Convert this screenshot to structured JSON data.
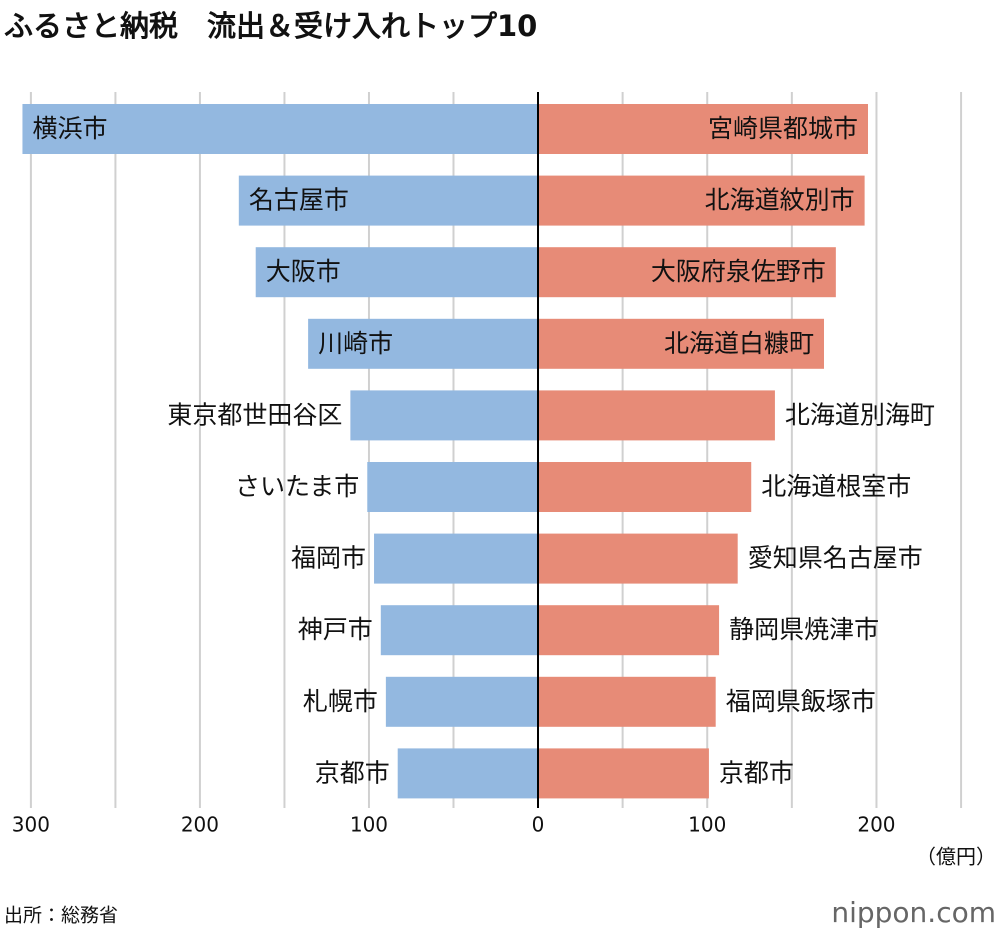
{
  "chart_data": {
    "type": "butterfly",
    "title": "ふるさと納税　流出＆受け入れトップ10",
    "unit_label": "（億円）",
    "source": "出所：総務省",
    "logo": "nippon.com",
    "grid": true,
    "left": {
      "categories": [
        "横浜市",
        "名古屋市",
        "大阪市",
        "川崎市",
        "東京都世田谷区",
        "さいたま市",
        "福岡市",
        "神戸市",
        "札幌市",
        "京都市"
      ],
      "values": [
        305,
        177,
        167,
        136,
        111,
        101,
        97,
        93,
        90,
        83
      ],
      "color": "#93b8e0",
      "xlim": [
        0,
        310
      ],
      "xticks": [
        0,
        100,
        200,
        300
      ],
      "xgrid": [
        50,
        100,
        150,
        200,
        250,
        300
      ]
    },
    "right": {
      "categories": [
        "宮崎県都城市",
        "北海道紋別市",
        "大阪府泉佐野市",
        "北海道白糠町",
        "北海道別海町",
        "北海道根室市",
        "愛知県名古屋市",
        "静岡県焼津市",
        "福岡県飯塚市",
        "京都市"
      ],
      "values": [
        195,
        193,
        176,
        169,
        140,
        126,
        118,
        107,
        105,
        101
      ],
      "color": "#e78b77",
      "xlim": [
        0,
        273
      ],
      "xticks": [
        100,
        200
      ],
      "xgrid": [
        50,
        100,
        150,
        200,
        250
      ]
    }
  }
}
